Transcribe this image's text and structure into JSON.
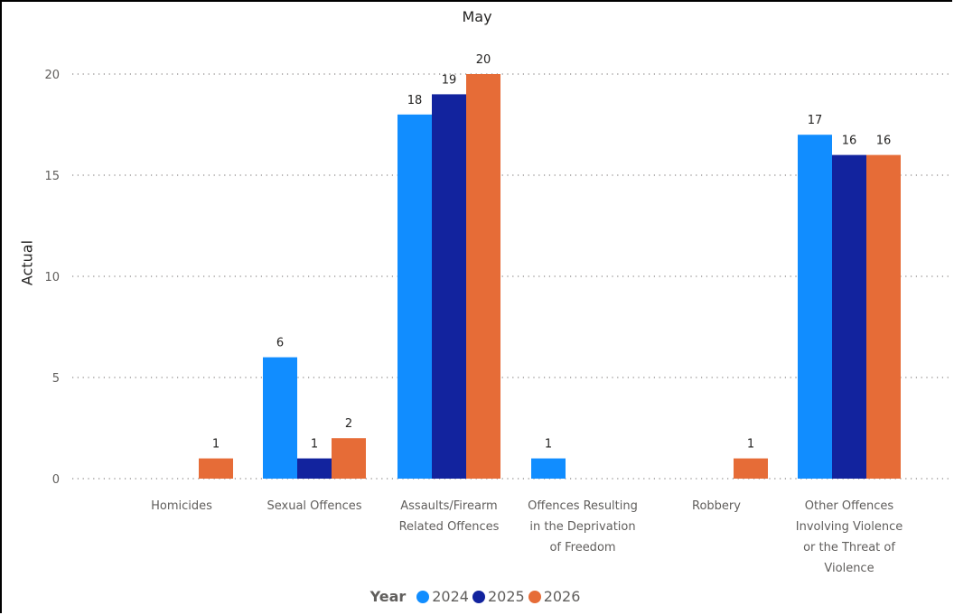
{
  "chart_data": {
    "type": "bar",
    "title": "May",
    "xlabel": "",
    "ylabel": "Actual",
    "ylim": [
      0,
      20
    ],
    "yticks": [
      0,
      5,
      10,
      15,
      20
    ],
    "grid": true,
    "legend_placement": "bottom",
    "legend_title": "Year",
    "categories": [
      "Homicides",
      "Sexual Offences",
      "Assaults/Firearm Related Offences",
      "Offences Resulting in the Deprivation of Freedom",
      "Robbery",
      "Other Offences Involving Violence or the Threat of Violence"
    ],
    "series": [
      {
        "name": "2024",
        "color": "#118DFF",
        "values": [
          null,
          6,
          18,
          1,
          null,
          17
        ]
      },
      {
        "name": "2025",
        "color": "#12239E",
        "values": [
          null,
          1,
          19,
          null,
          null,
          16
        ]
      },
      {
        "name": "2026",
        "color": "#E66C37",
        "values": [
          1,
          2,
          20,
          null,
          1,
          16
        ]
      }
    ]
  }
}
